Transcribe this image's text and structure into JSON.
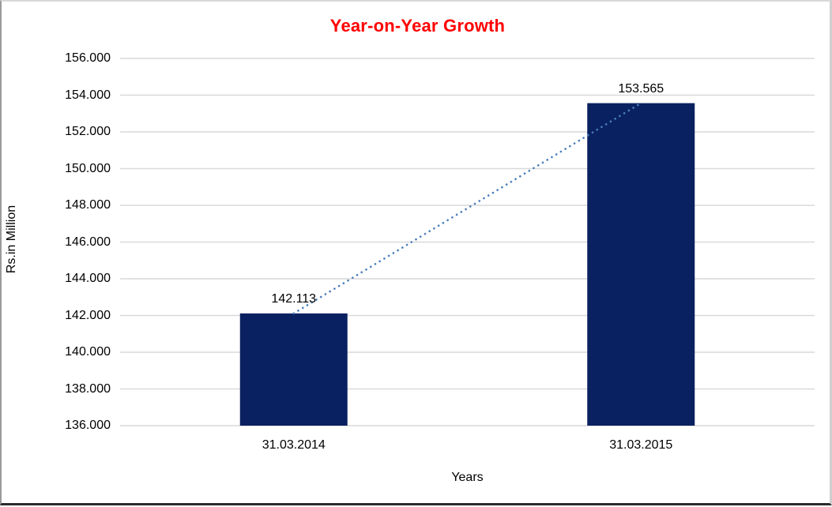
{
  "chart_data": {
    "type": "bar",
    "title": "Year-on-Year Growth",
    "xlabel": "Years",
    "ylabel": "Rs.in Million",
    "categories": [
      "31.03.2014",
      "31.03.2015"
    ],
    "values": [
      142113,
      153565
    ],
    "value_labels": [
      "142.113",
      "153.565"
    ],
    "ylim": [
      136000,
      156000
    ],
    "ytick_step": 2000,
    "ytick_labels": [
      "136.000",
      "138.000",
      "140.000",
      "142.000",
      "144.000",
      "146.000",
      "148.000",
      "150.000",
      "152.000",
      "154.000",
      "156.000"
    ],
    "grid": "horizontal-light-gray",
    "legend": "none",
    "trendline": {
      "style": "dotted",
      "from": [
        142113,
        153565
      ],
      "connects": "bar tops"
    },
    "colors": {
      "bar": "#0a2161",
      "title": "#ff0000",
      "gridline": "#d9d9d9",
      "axis_line": "#d9d9d9",
      "trendline": "#4a7ebb",
      "text": "#000000",
      "background": "#ffffff"
    }
  }
}
